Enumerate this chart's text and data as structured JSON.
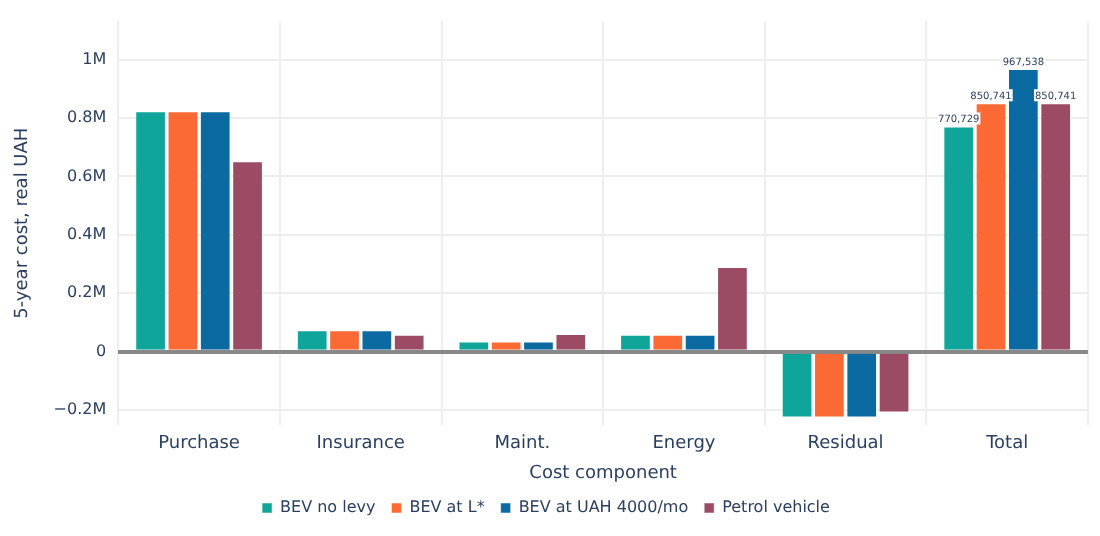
{
  "chart_data": {
    "type": "bar",
    "xlabel": "Cost component",
    "ylabel": "5-year cost, real UAH",
    "categories": [
      "Purchase",
      "Insurance",
      "Maint.",
      "Energy",
      "Residual",
      "Total"
    ],
    "series": [
      {
        "name": "BEV no levy",
        "color": "#0fa59b",
        "values": [
          823000,
          74000,
          35000,
          58000,
          -225000,
          770729
        ],
        "value_labels": [
          null,
          null,
          null,
          null,
          null,
          "770,729"
        ]
      },
      {
        "name": "BEV at L*",
        "color": "#fb6a35",
        "values": [
          823000,
          74000,
          35000,
          58000,
          -225000,
          850741
        ],
        "value_labels": [
          null,
          null,
          null,
          null,
          null,
          "850,741"
        ]
      },
      {
        "name": "BEV at UAH 4000/mo",
        "color": "#0b6aa2",
        "values": [
          823000,
          74000,
          35000,
          58000,
          -225000,
          967538
        ],
        "value_labels": [
          null,
          null,
          null,
          null,
          null,
          "967,538"
        ]
      },
      {
        "name": "Petrol vehicle",
        "color": "#9c4b64",
        "values": [
          652000,
          58000,
          61000,
          290000,
          -208000,
          850741
        ],
        "value_labels": [
          null,
          null,
          null,
          null,
          null,
          "850,741"
        ]
      }
    ],
    "ylim": [
      -250000,
      1130000
    ],
    "yticks": [
      {
        "value": -200000,
        "label": "−0.2M"
      },
      0,
      {
        "value": 200000,
        "label": "0.2M"
      },
      {
        "value": 400000,
        "label": "0.4M"
      },
      {
        "value": 600000,
        "label": "0.6M"
      },
      {
        "value": 800000,
        "label": "0.8M"
      },
      {
        "value": 1000000,
        "label": "1M"
      }
    ],
    "grid": true,
    "legend": "bottom"
  }
}
